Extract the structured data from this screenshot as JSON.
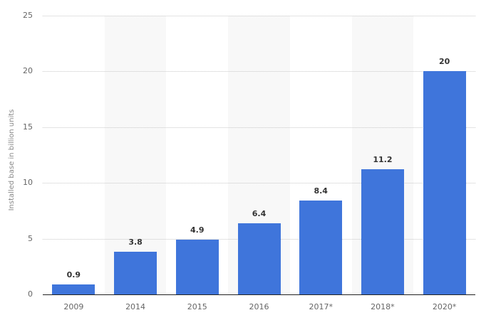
{
  "chart_data": {
    "type": "bar",
    "title": "",
    "xlabel": "",
    "ylabel": "Installed base in billion units",
    "categories": [
      "2009",
      "2014",
      "2015",
      "2016",
      "2017*",
      "2018*",
      "2020*"
    ],
    "values": [
      0.9,
      3.8,
      4.9,
      6.4,
      8.4,
      11.2,
      20
    ],
    "value_labels": [
      "0.9",
      "3.8",
      "4.9",
      "6.4",
      "8.4",
      "11.2",
      "20"
    ],
    "ylim": [
      0,
      25
    ],
    "yticks": [
      "0",
      "5",
      "10",
      "15",
      "20",
      "25"
    ],
    "grid": true,
    "legend": null,
    "bar_color": "#3f75db"
  }
}
